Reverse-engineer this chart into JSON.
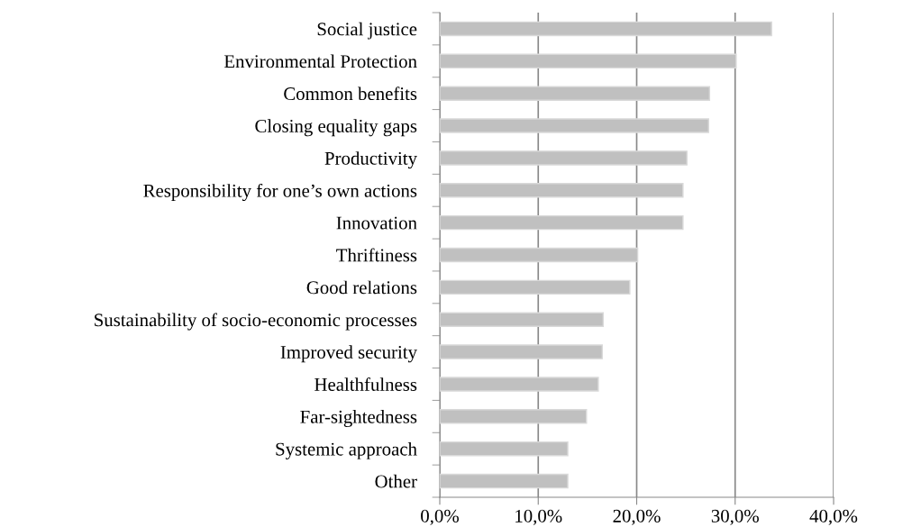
{
  "chart_data": {
    "type": "bar",
    "orientation": "horizontal",
    "categories": [
      "Social justice",
      "Environmental Protection",
      "Common benefits",
      "Closing equality gaps",
      "Productivity",
      "Responsibility for one’s own actions",
      "Innovation",
      "Thriftiness",
      "Good relations",
      "Sustainability of socio-economic processes",
      "Improved security",
      "Healthfulness",
      "Far-sightedness",
      "Systemic approach",
      "Other"
    ],
    "values": [
      33.7,
      30.1,
      27.4,
      27.3,
      25.1,
      24.7,
      24.7,
      20.1,
      19.3,
      16.6,
      16.5,
      16.1,
      14.9,
      13.0,
      13.0
    ],
    "color": "#c0c0c0",
    "xlim": [
      0,
      40
    ],
    "xticks": [
      {
        "value": 0,
        "label": "0,0%"
      },
      {
        "value": 10,
        "label": "10,0%"
      },
      {
        "value": 20,
        "label": "20,0%"
      },
      {
        "value": 30,
        "label": "30,0%"
      },
      {
        "value": 40,
        "label": "40,0%"
      }
    ],
    "grid": "x",
    "legend": false
  }
}
